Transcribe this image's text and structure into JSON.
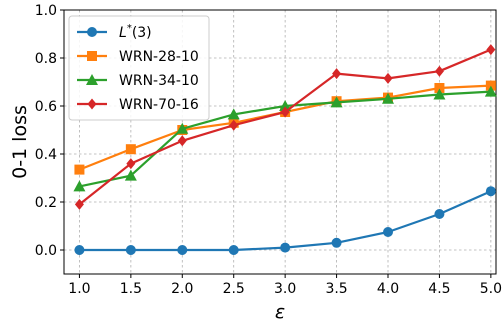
{
  "chart_data": {
    "type": "line",
    "xlabel": "ε",
    "ylabel": "0-1 loss",
    "x": [
      1.0,
      1.5,
      2.0,
      2.5,
      3.0,
      3.5,
      4.0,
      4.5,
      5.0
    ],
    "x_tick_labels": [
      "1.0",
      "1.5",
      "2.0",
      "2.5",
      "3.0",
      "3.5",
      "4.0",
      "4.5",
      "5.0"
    ],
    "y_ticks": [
      0.0,
      0.2,
      0.4,
      0.6,
      0.8,
      1.0
    ],
    "y_tick_labels": [
      "0.0",
      "0.2",
      "0.4",
      "0.6",
      "0.8",
      "1.0"
    ],
    "xlim": [
      0.85,
      5.05
    ],
    "ylim": [
      -0.1,
      1.0
    ],
    "grid": true,
    "legend_position": "top-left",
    "series": [
      {
        "name": "L*(3)",
        "name_main": "L",
        "name_sup": "*",
        "name_rest": "(3)",
        "color": "#1f77b4",
        "marker": "circle",
        "values": [
          0.0,
          0.0,
          0.0,
          0.0,
          0.01,
          0.03,
          0.075,
          0.15,
          0.245
        ]
      },
      {
        "name": "WRN-28-10",
        "color": "#ff7f0e",
        "marker": "square",
        "values": [
          0.335,
          0.42,
          0.5,
          0.53,
          0.575,
          0.62,
          0.635,
          0.675,
          0.685
        ]
      },
      {
        "name": "WRN-34-10",
        "color": "#2ca02c",
        "marker": "triangle",
        "values": [
          0.265,
          0.31,
          0.505,
          0.565,
          0.6,
          0.615,
          0.63,
          0.648,
          0.66
        ]
      },
      {
        "name": "WRN-70-16",
        "color": "#d62728",
        "marker": "diamond",
        "values": [
          0.19,
          0.36,
          0.455,
          0.52,
          0.575,
          0.735,
          0.715,
          0.745,
          0.835
        ]
      }
    ]
  }
}
